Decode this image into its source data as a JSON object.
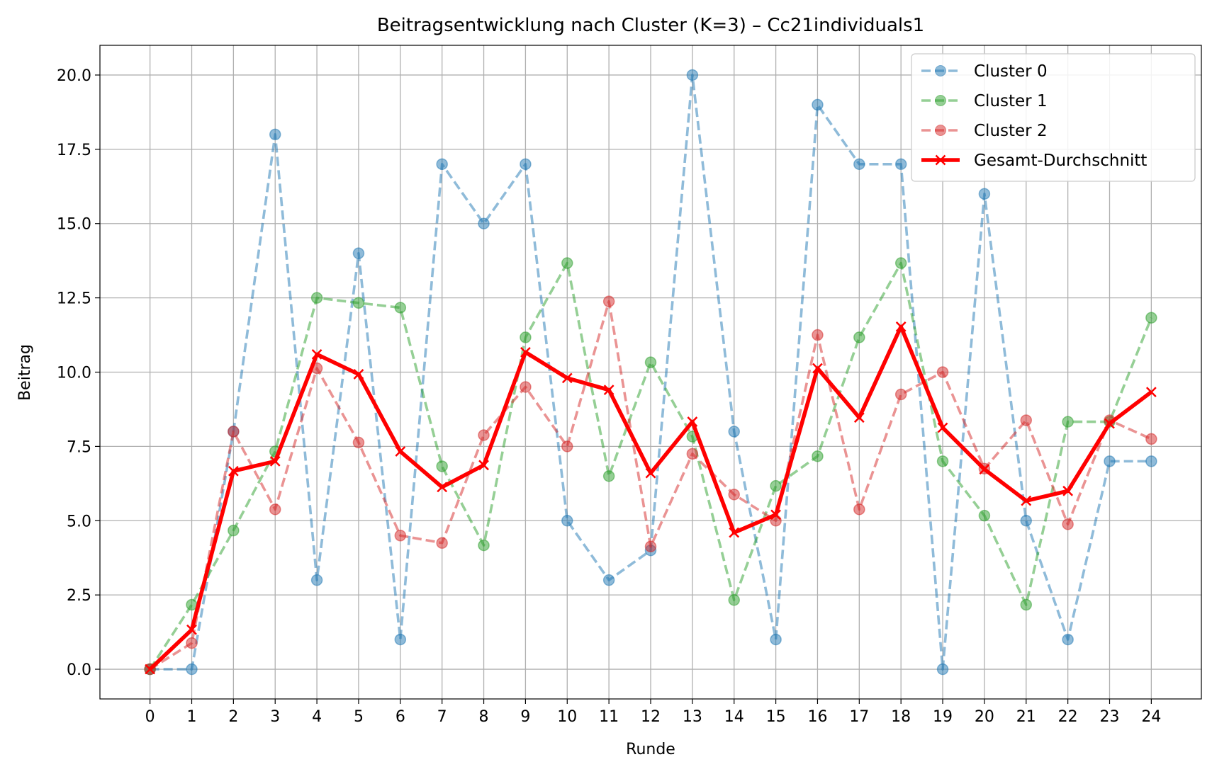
{
  "chart_data": {
    "type": "line",
    "title": "Beitragsentwicklung nach Cluster (K=3) – Cc21individuals1",
    "xlabel": "Runde",
    "ylabel": "Beitrag",
    "x": [
      0,
      1,
      2,
      3,
      4,
      5,
      6,
      7,
      8,
      9,
      10,
      11,
      12,
      13,
      14,
      15,
      16,
      17,
      18,
      19,
      20,
      21,
      22,
      23,
      24
    ],
    "xlim": [
      -1.2,
      25.2
    ],
    "ylim": [
      -1.0,
      21.0
    ],
    "yticks": [
      0.0,
      2.5,
      5.0,
      7.5,
      10.0,
      12.5,
      15.0,
      17.5,
      20.0
    ],
    "ytick_labels": [
      "0.0",
      "2.5",
      "5.0",
      "7.5",
      "10.0",
      "12.5",
      "15.0",
      "17.5",
      "20.0"
    ],
    "xtick_labels": [
      "0",
      "1",
      "2",
      "3",
      "4",
      "5",
      "6",
      "7",
      "8",
      "9",
      "10",
      "11",
      "12",
      "13",
      "14",
      "15",
      "16",
      "17",
      "18",
      "19",
      "20",
      "21",
      "22",
      "23",
      "24"
    ],
    "grid": true,
    "legend_position": "top-right",
    "series": [
      {
        "name": "Cluster 0",
        "color": "#1f77b4",
        "style": "dashed",
        "marker": "circle",
        "values": [
          0,
          0,
          8,
          18,
          3,
          14,
          1,
          17,
          15,
          17,
          5,
          3,
          4,
          20,
          8,
          1,
          19,
          17,
          17,
          0,
          16,
          5,
          1,
          7,
          7
        ]
      },
      {
        "name": "Cluster 1",
        "color": "#2ca02c",
        "style": "dashed",
        "marker": "circle",
        "values": [
          0,
          2.17,
          4.67,
          7.33,
          12.5,
          12.33,
          12.17,
          6.83,
          4.17,
          11.17,
          13.67,
          6.5,
          10.33,
          7.83,
          2.33,
          6.17,
          7.17,
          11.17,
          13.67,
          7.0,
          5.17,
          2.17,
          8.33,
          8.33,
          11.83
        ]
      },
      {
        "name": "Cluster 2",
        "color": "#d62728",
        "style": "dashed",
        "marker": "circle",
        "values": [
          0,
          0.88,
          8.0,
          5.38,
          10.13,
          7.63,
          4.5,
          4.25,
          7.88,
          9.5,
          7.5,
          12.38,
          4.13,
          7.25,
          5.88,
          5.0,
          11.25,
          5.38,
          9.25,
          10.0,
          6.75,
          8.38,
          4.88,
          8.38,
          7.75
        ]
      },
      {
        "name": "Gesamt-Durchschnitt",
        "color": "#ff0000",
        "style": "solid",
        "marker": "x",
        "values": [
          0,
          1.33,
          6.67,
          7.0,
          10.6,
          9.93,
          7.33,
          6.13,
          6.87,
          10.67,
          9.8,
          9.4,
          6.6,
          8.33,
          4.6,
          5.2,
          10.13,
          8.47,
          11.53,
          8.13,
          6.73,
          5.67,
          6.0,
          8.27,
          9.33
        ]
      }
    ]
  }
}
